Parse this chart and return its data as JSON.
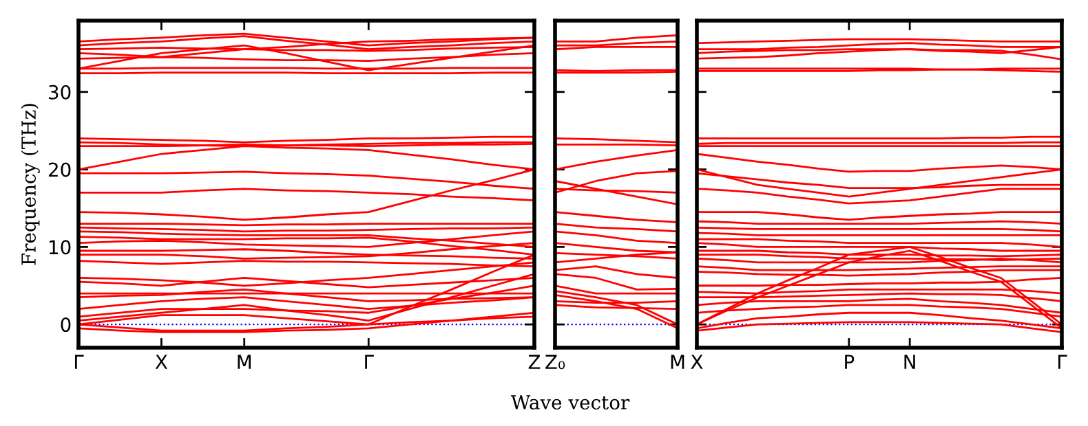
{
  "chart_data": [
    {
      "type": "line",
      "ylabel": "Frequency (THz)",
      "xlabel": "Wave vector",
      "categories": [
        "Γ",
        null,
        "X",
        null,
        "M",
        null,
        null,
        "Γ",
        null,
        null,
        null,
        "Z"
      ],
      "ylim": [
        -3,
        39.2
      ],
      "yticks": [
        0,
        10,
        20,
        30
      ],
      "line_style": "solid",
      "marker": "none",
      "ref_lines": [
        {
          "axis": "y",
          "value": 0,
          "color": "#0000ff",
          "line_style": "dotted"
        }
      ],
      "series": [
        {
          "color": "#ff0000",
          "values": [
            32.4,
            32.4,
            32.5,
            32.5,
            32.5,
            32.5,
            32.4,
            32.4,
            32.4,
            32.4,
            32.5,
            32.5
          ]
        },
        {
          "color": "#ff0000",
          "values": [
            33,
            33,
            33.1,
            33.1,
            33.1,
            33.1,
            33,
            33,
            33,
            33.1,
            33.1,
            33.1
          ]
        },
        {
          "color": "#ff0000",
          "values": [
            33,
            34,
            35,
            35.5,
            36,
            35,
            33.9,
            32.8,
            33.6,
            34.4,
            35.2,
            36
          ]
        },
        {
          "color": "#ff0000",
          "values": [
            35,
            34.8,
            34.5,
            35,
            35.5,
            35.8,
            36.2,
            36.5,
            36.6,
            36.8,
            36.9,
            37
          ]
        },
        {
          "color": "#ff0000",
          "values": [
            36,
            36.3,
            36.5,
            36.9,
            37.2,
            36.6,
            36.1,
            35.5,
            35.8,
            36,
            36.3,
            36.5
          ]
        },
        {
          "color": "#ff0000",
          "values": [
            36.5,
            36.8,
            37,
            37.3,
            37.5,
            37,
            36.5,
            36,
            36.3,
            36.5,
            36.8,
            37
          ]
        },
        {
          "color": "#ff0000",
          "values": [
            35.5,
            35.6,
            35.7,
            35.6,
            35.5,
            35.4,
            35.4,
            35.3,
            35.4,
            35.6,
            35.7,
            35.8
          ]
        },
        {
          "color": "#ff0000",
          "values": [
            34.3,
            34.4,
            34.5,
            34.4,
            34.2,
            34.1,
            34.1,
            34,
            34.3,
            34.5,
            34.8,
            35
          ]
        },
        {
          "color": "#ff0000",
          "values": [
            24,
            23.9,
            23.8,
            23.7,
            23.5,
            23.7,
            23.8,
            24,
            24,
            24.1,
            24.2,
            24.2
          ]
        },
        {
          "color": "#ff0000",
          "values": [
            23.5,
            23.4,
            23.2,
            23.1,
            23,
            23.1,
            23.2,
            23.3,
            23.4,
            23.4,
            23.5,
            23.5
          ]
        },
        {
          "color": "#ff0000",
          "values": [
            23,
            23,
            23,
            23.1,
            23.2,
            23.1,
            23.1,
            23,
            23.1,
            23.2,
            23.2,
            23.3
          ]
        },
        {
          "color": "#ff0000",
          "values": [
            20,
            21,
            22,
            22.5,
            23,
            22.8,
            22.7,
            22.5,
            21.9,
            21.3,
            20.6,
            20
          ]
        },
        {
          "color": "#ff0000",
          "values": [
            19.5,
            19.5,
            19.5,
            19.6,
            19.7,
            19.5,
            19.4,
            19.2,
            18.8,
            18.4,
            17.9,
            17.5
          ]
        },
        {
          "color": "#ff0000",
          "values": [
            17,
            17,
            17,
            17.3,
            17.5,
            17.3,
            17.2,
            17,
            16.8,
            16.5,
            16.3,
            16
          ]
        },
        {
          "color": "#ff0000",
          "values": [
            14.5,
            14.4,
            14.2,
            13.9,
            13.5,
            13.8,
            14.2,
            14.5,
            15.9,
            17.3,
            18.6,
            20
          ]
        },
        {
          "color": "#ff0000",
          "values": [
            13,
            13,
            13,
            12.9,
            12.8,
            12.9,
            12.9,
            13,
            13,
            13,
            13,
            13
          ]
        },
        {
          "color": "#ff0000",
          "values": [
            12.5,
            12.4,
            12.3,
            12.2,
            12,
            12.1,
            12.1,
            12.2,
            12.3,
            12.4,
            12.4,
            12.5
          ]
        },
        {
          "color": "#ff0000",
          "values": [
            12,
            11.9,
            11.7,
            11.6,
            11.5,
            11.5,
            11.5,
            11.5,
            11.1,
            10.8,
            10.4,
            10
          ]
        },
        {
          "color": "#ff0000",
          "values": [
            11.3,
            11.2,
            11,
            11,
            11,
            11.1,
            11.1,
            11.2,
            10.7,
            10.1,
            9.6,
            9
          ]
        },
        {
          "color": "#ff0000",
          "values": [
            10.5,
            10.7,
            10.8,
            10.6,
            10.3,
            10.2,
            10.1,
            10,
            10.5,
            11,
            11.5,
            12
          ]
        },
        {
          "color": "#ff0000",
          "values": [
            9.5,
            9.5,
            9.5,
            9.6,
            9.7,
            9.5,
            9.2,
            9,
            8.9,
            8.8,
            8.6,
            8.5
          ]
        },
        {
          "color": "#ff0000",
          "values": [
            9,
            9,
            9,
            8.8,
            8.5,
            8.6,
            8.7,
            8.8,
            9.2,
            9.7,
            10.1,
            10.5
          ]
        },
        {
          "color": "#ff0000",
          "values": [
            8.2,
            8,
            7.8,
            8,
            8.2,
            8.1,
            8.1,
            8,
            7.9,
            7.8,
            7.6,
            7.5
          ]
        },
        {
          "color": "#ff0000",
          "values": [
            6,
            5.9,
            5.7,
            5.4,
            5,
            5.3,
            5.7,
            6,
            6.5,
            7,
            7.5,
            8
          ]
        },
        {
          "color": "#ff0000",
          "values": [
            5.5,
            5.3,
            5,
            5.5,
            6,
            5.6,
            5.2,
            4.8,
            5.1,
            5.4,
            5.7,
            6
          ]
        },
        {
          "color": "#ff0000",
          "values": [
            4,
            4,
            4,
            4,
            4,
            4,
            4,
            4,
            4,
            4,
            4,
            4
          ]
        },
        {
          "color": "#ff0000",
          "values": [
            3.5,
            3.7,
            3.8,
            4.2,
            4.5,
            4,
            3.5,
            3,
            3.1,
            3.3,
            3.4,
            3.5
          ]
        },
        {
          "color": "#ff0000",
          "values": [
            2,
            2.5,
            3,
            3.3,
            3.5,
            3,
            2.5,
            2,
            2.4,
            2.8,
            3.1,
            3.5
          ]
        },
        {
          "color": "#ff0000",
          "values": [
            1,
            1.5,
            2,
            2,
            2,
            1.8,
            1.7,
            1.5,
            2.4,
            3.3,
            4.1,
            5
          ]
        },
        {
          "color": "#ff0000",
          "values": [
            0.5,
            1,
            1.5,
            2,
            2.5,
            1.8,
            1.2,
            0.5,
            2,
            3.5,
            5,
            6.5
          ]
        },
        {
          "color": "#ff0000",
          "values": [
            0,
            0.6,
            1.2,
            1.2,
            1.2,
            0.8,
            0.4,
            0,
            2.3,
            4.5,
            6.8,
            9
          ]
        },
        {
          "color": "#ff0000",
          "values": [
            0,
            -0.4,
            -0.8,
            -0.8,
            -0.8,
            -0.5,
            -0.3,
            0,
            0.3,
            0.5,
            0.8,
            1
          ]
        },
        {
          "color": "#ff0000",
          "values": [
            -0.5,
            -0.8,
            -1,
            -1,
            -1,
            -0.8,
            -0.7,
            -0.5,
            0,
            0.5,
            1,
            1.5
          ]
        }
      ]
    },
    {
      "type": "line",
      "tick_labels": "x",
      "categories": [
        "Z₀",
        null,
        null,
        "M"
      ],
      "ylim": [
        -3,
        39.2
      ],
      "yticks": [
        {
          "value": 0,
          "label": null
        },
        {
          "value": 10,
          "label": null
        },
        {
          "value": 20,
          "label": null
        },
        {
          "value": 30,
          "label": null
        }
      ],
      "line_style": "solid",
      "marker": "none",
      "ref_lines": [
        {
          "axis": "y",
          "value": 0,
          "color": "#0000ff",
          "line_style": "dotted"
        }
      ],
      "series": [
        {
          "color": "#ff0000",
          "values": [
            36.5,
            36.5,
            37,
            37.3
          ]
        },
        {
          "color": "#ff0000",
          "values": [
            36,
            36,
            36.3,
            36.5
          ]
        },
        {
          "color": "#ff0000",
          "values": [
            35.5,
            35.8,
            35.8,
            35.8
          ]
        },
        {
          "color": "#ff0000",
          "values": [
            32.8,
            32.7,
            32.8,
            32.8
          ]
        },
        {
          "color": "#ff0000",
          "values": [
            32.5,
            32.5,
            32.5,
            32.6
          ]
        },
        {
          "color": "#ff0000",
          "values": [
            24,
            23.9,
            23.7,
            23.5
          ]
        },
        {
          "color": "#ff0000",
          "values": [
            23.2,
            23.2,
            23.2,
            23.1
          ]
        },
        {
          "color": "#ff0000",
          "values": [
            20,
            21,
            21.8,
            22.5
          ]
        },
        {
          "color": "#ff0000",
          "values": [
            17,
            18.5,
            19.5,
            19.8
          ]
        },
        {
          "color": "#ff0000",
          "values": [
            17.5,
            17.3,
            17.2,
            17
          ]
        },
        {
          "color": "#ff0000",
          "values": [
            18.5,
            17.5,
            16.5,
            15.5
          ]
        },
        {
          "color": "#ff0000",
          "values": [
            14.5,
            14,
            13.5,
            13.2
          ]
        },
        {
          "color": "#ff0000",
          "values": [
            13,
            12.5,
            12.3,
            12
          ]
        },
        {
          "color": "#ff0000",
          "values": [
            12,
            11.5,
            10.8,
            10.5
          ]
        },
        {
          "color": "#ff0000",
          "values": [
            10.5,
            10,
            9.5,
            9.3
          ]
        },
        {
          "color": "#ff0000",
          "values": [
            9.2,
            9,
            8.8,
            8.5
          ]
        },
        {
          "color": "#ff0000",
          "values": [
            8,
            8.5,
            9,
            9.3
          ]
        },
        {
          "color": "#ff0000",
          "values": [
            7,
            7.5,
            6.5,
            6
          ]
        },
        {
          "color": "#ff0000",
          "values": [
            6.5,
            6,
            4.5,
            4.6
          ]
        },
        {
          "color": "#ff0000",
          "values": [
            5,
            4,
            4,
            4
          ]
        },
        {
          "color": "#ff0000",
          "values": [
            4.3,
            3.5,
            2.5,
            0
          ]
        },
        {
          "color": "#ff0000",
          "values": [
            3.8,
            3,
            2,
            -0.5
          ]
        },
        {
          "color": "#ff0000",
          "values": [
            3,
            2.8,
            2.8,
            3
          ]
        },
        {
          "color": "#ff0000",
          "values": [
            2.5,
            2.2,
            2.1,
            2
          ]
        }
      ]
    },
    {
      "type": "line",
      "tick_labels": "x",
      "categories": [
        "X",
        null,
        null,
        null,
        null,
        "P",
        null,
        "N",
        null,
        null,
        null,
        null,
        "Γ"
      ],
      "ylim": [
        -3,
        39.2
      ],
      "yticks": [
        {
          "value": 0,
          "label": null
        },
        {
          "value": 10,
          "label": null
        },
        {
          "value": 20,
          "label": null
        },
        {
          "value": 30,
          "label": null
        }
      ],
      "line_style": "solid",
      "marker": "none",
      "ref_lines": [
        {
          "axis": "y",
          "value": 0,
          "color": "#0000ff",
          "line_style": "dotted"
        }
      ],
      "series": [
        {
          "color": "#ff0000",
          "values": [
            36.3,
            36.4,
            36.5,
            36.6,
            36.7,
            36.8,
            36.8,
            36.8,
            36.7,
            36.6,
            36.5,
            36.5,
            36.5
          ]
        },
        {
          "color": "#ff0000",
          "values": [
            35.5,
            35.5,
            35.5,
            35.7,
            35.8,
            36,
            36.2,
            36.3,
            36.1,
            36,
            35.8,
            35.8,
            35.8
          ]
        },
        {
          "color": "#ff0000",
          "values": [
            35,
            35.2,
            35.3,
            35.4,
            35.4,
            35.5,
            35.5,
            35.5,
            35.3,
            35.2,
            35,
            35.4,
            35.8
          ]
        },
        {
          "color": "#ff0000",
          "values": [
            34.3,
            34.4,
            34.5,
            34.7,
            35,
            35.2,
            35.4,
            35.5,
            35.4,
            35.4,
            35.3,
            34.8,
            34.2
          ]
        },
        {
          "color": "#ff0000",
          "values": [
            33,
            33,
            33,
            33,
            33,
            33,
            33,
            33,
            32.9,
            32.9,
            32.8,
            32.7,
            32.6
          ]
        },
        {
          "color": "#ff0000",
          "values": [
            32.7,
            32.7,
            32.7,
            32.7,
            32.7,
            32.7,
            32.8,
            32.8,
            32.9,
            32.9,
            33,
            33,
            33
          ]
        },
        {
          "color": "#ff0000",
          "values": [
            24,
            24,
            24,
            24,
            24,
            24,
            24,
            24,
            24,
            24.1,
            24.1,
            24.2,
            24.2
          ]
        },
        {
          "color": "#ff0000",
          "values": [
            23.3,
            23.4,
            23.4,
            23.4,
            23.4,
            23.4,
            23.4,
            23.4,
            23.4,
            23.4,
            23.4,
            23.5,
            23.5
          ]
        },
        {
          "color": "#ff0000",
          "values": [
            23,
            23,
            23,
            23,
            23,
            23,
            23,
            23,
            23,
            23,
            23,
            23,
            23
          ]
        },
        {
          "color": "#ff0000",
          "values": [
            22,
            21.5,
            21,
            20.6,
            20.1,
            19.7,
            19.8,
            19.8,
            20.1,
            20.3,
            20.5,
            20.3,
            20
          ]
        },
        {
          "color": "#ff0000",
          "values": [
            19.5,
            19.1,
            18.7,
            18.3,
            18,
            17.6,
            17.6,
            17.6,
            17.7,
            17.9,
            18,
            18,
            18
          ]
        },
        {
          "color": "#ff0000",
          "values": [
            17.5,
            17.3,
            17,
            16.5,
            16.1,
            15.6,
            15.8,
            16,
            16.5,
            17,
            17.5,
            17.5,
            17.5
          ]
        },
        {
          "color": "#ff0000",
          "values": [
            20,
            19,
            18,
            17.5,
            17,
            16.5,
            17,
            17.5,
            18,
            18.5,
            19,
            19.5,
            20
          ]
        },
        {
          "color": "#ff0000",
          "values": [
            14.5,
            14.5,
            14.5,
            14.2,
            13.8,
            13.5,
            13.8,
            14,
            14.2,
            14.3,
            14.5,
            14.5,
            14.5
          ]
        },
        {
          "color": "#ff0000",
          "values": [
            13.3,
            13.2,
            13,
            13,
            13,
            13,
            13,
            13,
            13.1,
            13.2,
            13.3,
            13.2,
            13
          ]
        },
        {
          "color": "#ff0000",
          "values": [
            12.5,
            12.4,
            12.3,
            12.3,
            12.3,
            12.3,
            12.3,
            12.3,
            12.3,
            12.3,
            12.3,
            12.2,
            12
          ]
        },
        {
          "color": "#ff0000",
          "values": [
            11.8,
            11.7,
            11.5,
            11.5,
            11.5,
            11.5,
            11.5,
            11.5,
            11.5,
            11.5,
            11.5,
            11.5,
            11.5
          ]
        },
        {
          "color": "#ff0000",
          "values": [
            11,
            11,
            11,
            10.8,
            10.7,
            10.5,
            10.5,
            10.5,
            10.5,
            10.5,
            10.5,
            10.3,
            10
          ]
        },
        {
          "color": "#ff0000",
          "values": [
            10.5,
            10.3,
            10,
            10,
            10,
            10,
            10,
            10,
            9.8,
            9.7,
            9.5,
            9.5,
            9.5
          ]
        },
        {
          "color": "#ff0000",
          "values": [
            9.5,
            9.5,
            9.5,
            9.3,
            9.2,
            9,
            9,
            9,
            8.9,
            8.9,
            8.8,
            8.9,
            9
          ]
        },
        {
          "color": "#ff0000",
          "values": [
            9,
            9,
            9,
            8.8,
            8.7,
            8.5,
            8.5,
            8.5,
            8.4,
            8.4,
            8.3,
            8.4,
            8.5
          ]
        },
        {
          "color": "#ff0000",
          "values": [
            8.5,
            8.3,
            8,
            8,
            8,
            8,
            8,
            8,
            8.2,
            8.3,
            8.5,
            8.3,
            8
          ]
        },
        {
          "color": "#ff0000",
          "values": [
            7.5,
            7.3,
            7,
            7,
            7,
            7,
            7.1,
            7.2,
            7.3,
            7.4,
            7.5,
            7.5,
            7.5
          ]
        },
        {
          "color": "#ff0000",
          "values": [
            6.8,
            6.7,
            6.5,
            6.4,
            6.4,
            6.3,
            6.4,
            6.5,
            6.7,
            6.8,
            7,
            7,
            7
          ]
        },
        {
          "color": "#ff0000",
          "values": [
            5,
            5,
            5,
            5.1,
            5.1,
            5.2,
            5.3,
            5.3,
            5.4,
            5.4,
            5.5,
            5.8,
            6
          ]
        },
        {
          "color": "#ff0000",
          "values": [
            4.2,
            4.1,
            4,
            4.2,
            4.3,
            4.5,
            4.5,
            4.5,
            4.5,
            4.5,
            4.5,
            4.3,
            4
          ]
        },
        {
          "color": "#ff0000",
          "values": [
            3.5,
            3.5,
            3.5,
            3.6,
            3.7,
            3.8,
            3.9,
            4,
            3.9,
            3.9,
            3.8,
            3.4,
            3
          ]
        },
        {
          "color": "#ff0000",
          "values": [
            2.5,
            2.8,
            3,
            3,
            3,
            3,
            3.2,
            3.3,
            3,
            2.8,
            2.5,
            2,
            1.5
          ]
        },
        {
          "color": "#ff0000",
          "values": [
            1.5,
            1.8,
            2,
            2.2,
            2.3,
            2.5,
            2.5,
            2.5,
            2.3,
            2.2,
            2,
            1.5,
            1
          ]
        },
        {
          "color": "#ff0000",
          "values": [
            0,
            2,
            4,
            5.7,
            7.3,
            9,
            9.5,
            10,
            8.7,
            7.3,
            6,
            3,
            0
          ]
        },
        {
          "color": "#ff0000",
          "values": [
            0,
            1.8,
            3.5,
            5,
            6.5,
            8,
            8.8,
            9.5,
            8.2,
            6.8,
            5.5,
            2.5,
            -0.5
          ]
        },
        {
          "color": "#ff0000",
          "values": [
            -0.5,
            0.2,
            0.8,
            1,
            1.3,
            1.5,
            1.5,
            1.5,
            1.2,
            0.8,
            0.5,
            0,
            -0.5
          ]
        },
        {
          "color": "#ff0000",
          "values": [
            -0.8,
            -0.4,
            0,
            0.1,
            0.2,
            0.3,
            0.3,
            0.3,
            0.2,
            0.1,
            0,
            -0.5,
            -1
          ]
        }
      ]
    }
  ]
}
